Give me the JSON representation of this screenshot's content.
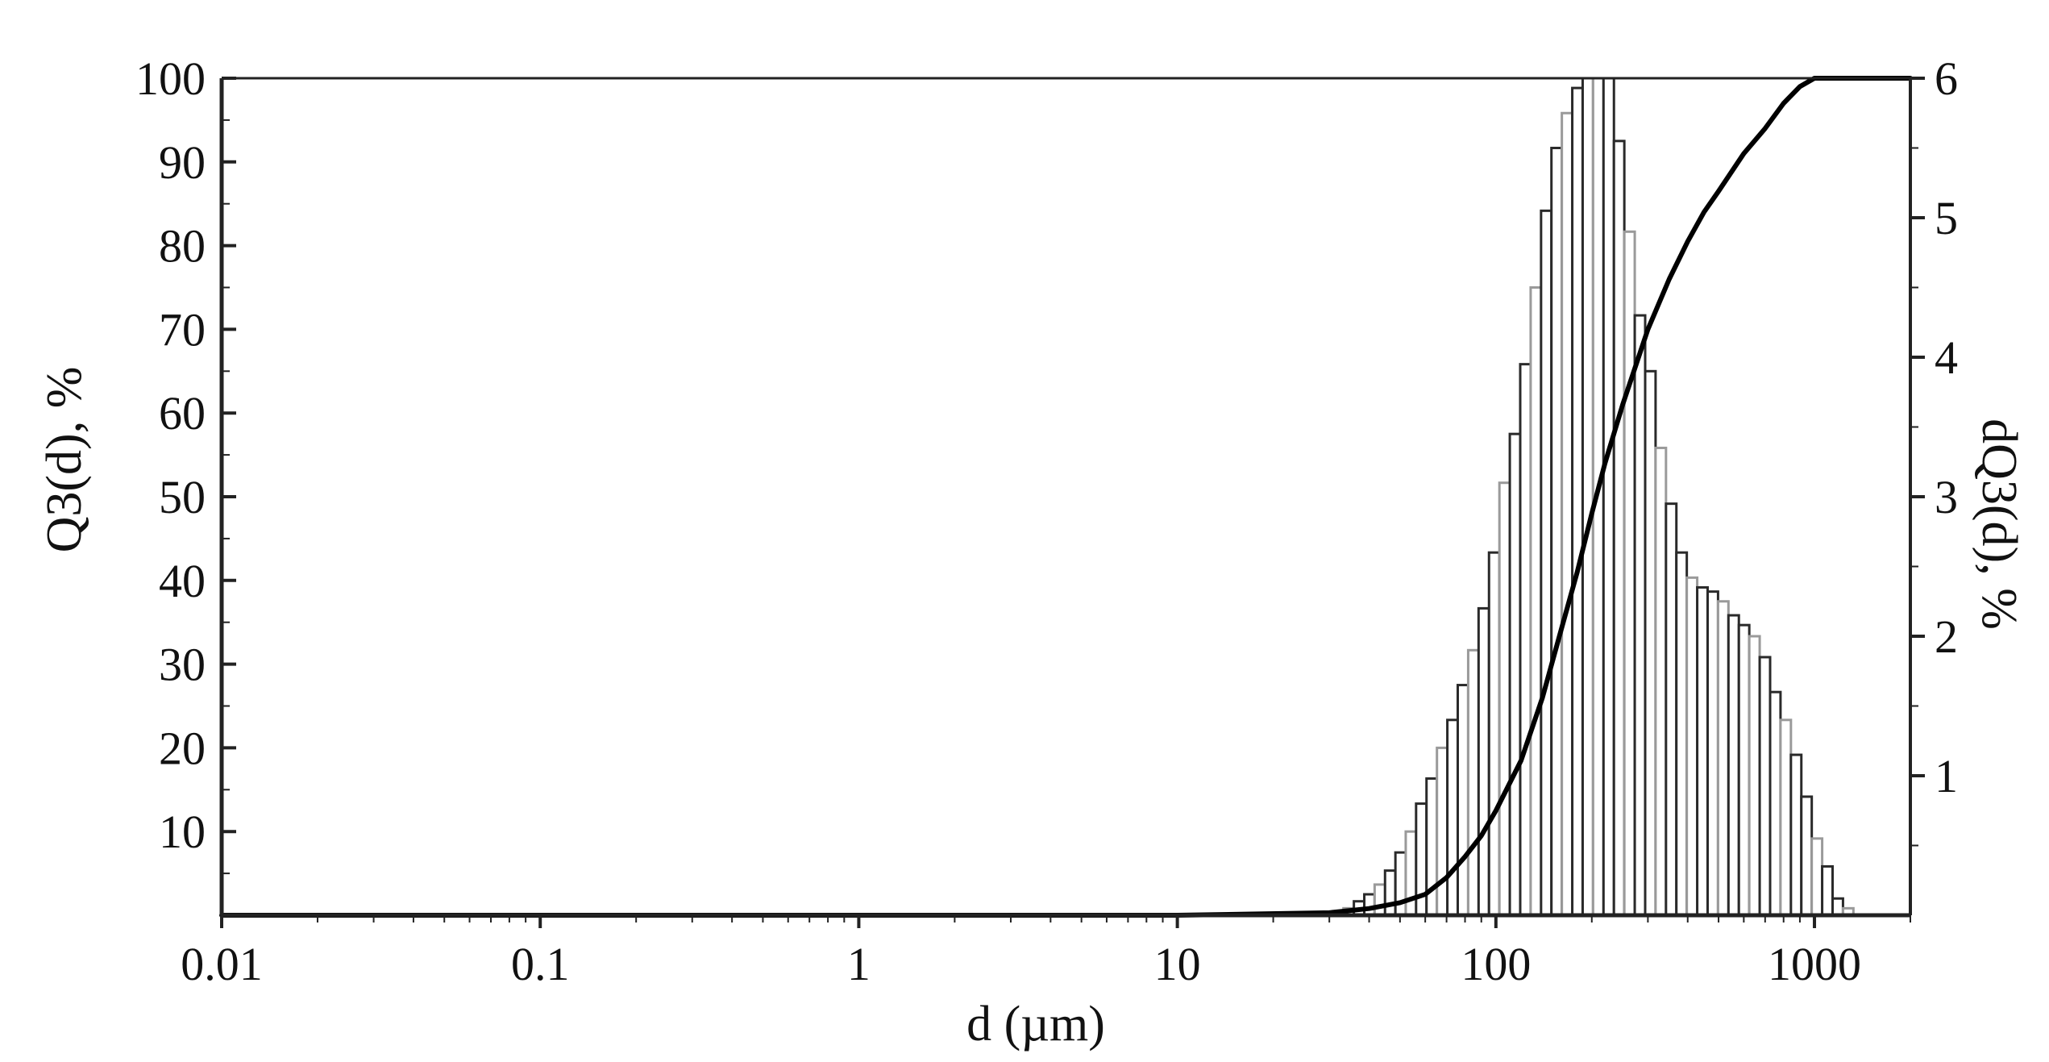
{
  "chart_data": {
    "type": "bar",
    "title": "",
    "xlabel": "d (µm)",
    "ylabel": "Q3(d), %",
    "y2label": "dQ3(d), %",
    "x_scale": "log",
    "xlim": [
      0.01,
      2000
    ],
    "ylim": [
      0,
      100
    ],
    "y2lim": [
      0,
      6
    ],
    "x_ticks": [
      0.01,
      0.1,
      1,
      10,
      100,
      1000
    ],
    "x_tick_labels": [
      "0.01",
      "0.1",
      "1",
      "10",
      "100",
      "1000"
    ],
    "y_ticks": [
      10,
      20,
      30,
      40,
      50,
      60,
      70,
      80,
      90,
      100
    ],
    "y_tick_labels": [
      "10",
      "20",
      "30",
      "40",
      "50",
      "60",
      "70",
      "80",
      "90",
      "100"
    ],
    "y2_ticks": [
      1,
      2,
      3,
      4,
      5,
      6
    ],
    "y2_tick_labels": [
      "1",
      "2",
      "3",
      "4",
      "5",
      "6"
    ],
    "grid": false,
    "legend": "none",
    "series": [
      {
        "type": "bar",
        "axis": "right",
        "x": [
          32,
          34.5,
          37.2,
          40.1,
          43.2,
          46.6,
          50.2,
          54.1,
          58.3,
          62.9,
          67.8,
          73.1,
          78.8,
          85,
          91.6,
          98.8,
          106.5,
          114.8,
          123.8,
          133.5,
          143.9,
          155.1,
          167.3,
          180.3,
          194.4,
          209.6,
          226,
          243.7,
          262.7,
          283.3,
          305.4,
          329.3,
          355,
          382.7,
          412.7,
          444.9,
          479.7,
          517.2,
          557.6,
          601.2,
          648.2,
          698.9,
          753.5,
          812.4,
          875.9,
          944.4,
          1018.2,
          1097.8,
          1183.6,
          1276.1
        ],
        "values": [
          0.02,
          0.05,
          0.1,
          0.15,
          0.22,
          0.32,
          0.45,
          0.6,
          0.8,
          0.98,
          1.2,
          1.4,
          1.65,
          1.9,
          2.2,
          2.6,
          3.1,
          3.45,
          3.95,
          4.5,
          5.05,
          5.5,
          5.75,
          5.93,
          6.0,
          6.0,
          6.0,
          5.55,
          4.9,
          4.3,
          3.9,
          3.35,
          2.95,
          2.6,
          2.42,
          2.35,
          2.32,
          2.25,
          2.15,
          2.08,
          2.0,
          1.85,
          1.6,
          1.4,
          1.15,
          0.85,
          0.55,
          0.35,
          0.12,
          0.05
        ]
      },
      {
        "type": "line",
        "axis": "left",
        "x": [
          0.01,
          10,
          30,
          40,
          50,
          60,
          70,
          80,
          90,
          100,
          120,
          140,
          160,
          180,
          200,
          220,
          250,
          300,
          350,
          400,
          450,
          500,
          600,
          700,
          800,
          900,
          1000,
          1100,
          2000
        ],
        "values": [
          0,
          0,
          0.3,
          0.8,
          1.5,
          2.5,
          4.5,
          7,
          9.5,
          12.5,
          18.5,
          26,
          34,
          41,
          48,
          54,
          61,
          70,
          76,
          80.5,
          84,
          86.5,
          91,
          94,
          97,
          99,
          100,
          100,
          100
        ]
      }
    ]
  }
}
